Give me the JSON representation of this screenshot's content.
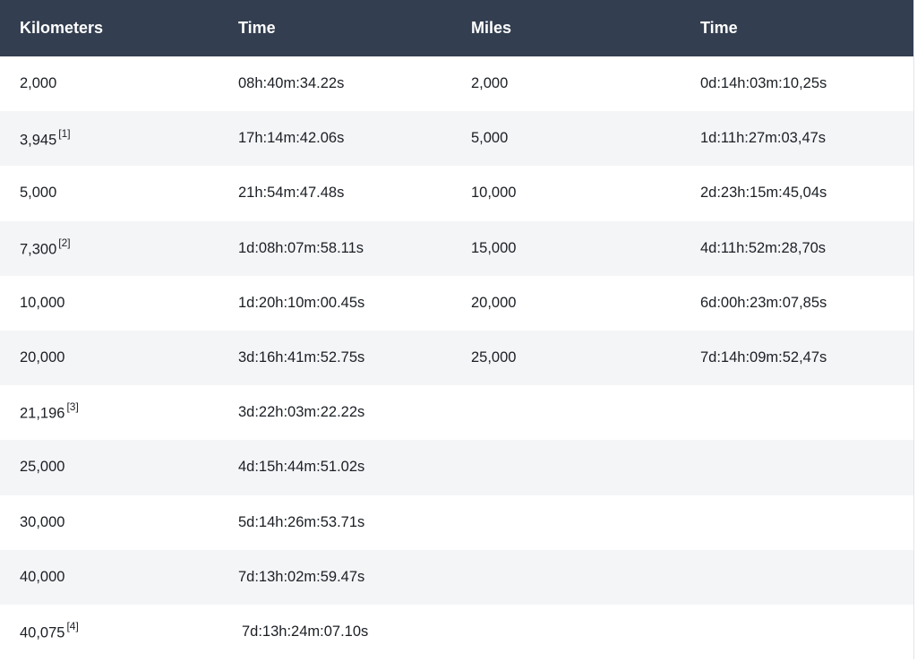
{
  "headers": [
    "Kilometers",
    "Time",
    "Miles",
    "Time"
  ],
  "rows": [
    {
      "km": "2,000",
      "note": "",
      "km_time": "08h:40m:34.22s",
      "miles": "2,000",
      "mi_time": "0d:14h:03m:10,25s"
    },
    {
      "km": "3,945",
      "note": "[1]",
      "km_time": "17h:14m:42.06s",
      "miles": "5,000",
      "mi_time": "1d:11h:27m:03,47s"
    },
    {
      "km": "5,000",
      "note": "",
      "km_time": "21h:54m:47.48s",
      "miles": "10,000",
      "mi_time": "2d:23h:15m:45,04s"
    },
    {
      "km": "7,300",
      "note": "[2]",
      "km_time": "1d:08h:07m:58.11s",
      "miles": "15,000",
      "mi_time": "4d:11h:52m:28,70s"
    },
    {
      "km": "10,000",
      "note": "",
      "km_time": "1d:20h:10m:00.45s",
      "miles": "20,000",
      "mi_time": "6d:00h:23m:07,85s"
    },
    {
      "km": "20,000",
      "note": "",
      "km_time": "3d:16h:41m:52.75s",
      "miles": "25,000",
      "mi_time": "7d:14h:09m:52,47s"
    },
    {
      "km": "21,196",
      "note": "[3]",
      "km_time": "3d:22h:03m:22.22s",
      "miles": "",
      "mi_time": ""
    },
    {
      "km": "25,000",
      "note": "",
      "km_time": "4d:15h:44m:51.02s",
      "miles": "",
      "mi_time": ""
    },
    {
      "km": "30,000",
      "note": "",
      "km_time": "5d:14h:26m:53.71s",
      "miles": "",
      "mi_time": ""
    },
    {
      "km": "40,000",
      "note": "",
      "km_time": "7d:13h:02m:59.47s",
      "miles": "",
      "mi_time": ""
    },
    {
      "km": "40,075",
      "note": "[4]",
      "km_time": "7d:13h:24m:07.10s",
      "miles": "",
      "mi_time": ""
    }
  ]
}
